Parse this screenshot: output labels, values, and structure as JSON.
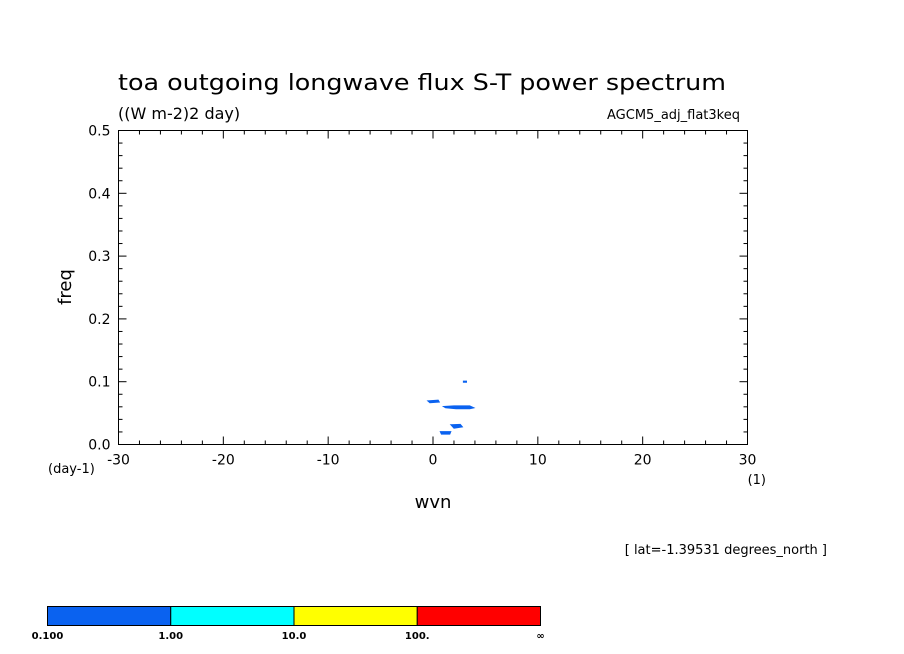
{
  "chart_data": {
    "type": "heatmap",
    "title": "toa outgoing longwave flux S-T power spectrum",
    "units": "((W m-2)2 day)",
    "dataset": "AGCM5_adj_flat3keq",
    "xlabel": "wvn",
    "ylabel": "freq",
    "x_unit": "(1)",
    "y_unit": "(day-1)",
    "xlim": [
      -30,
      30
    ],
    "ylim": [
      0,
      0.5
    ],
    "xticks": [
      -30,
      -20,
      -10,
      0,
      10,
      20,
      30
    ],
    "yticks": [
      0.0,
      0.1,
      0.2,
      0.3,
      0.4,
      0.5
    ],
    "xtick_labels": [
      "-30",
      "-20",
      "-10",
      "0",
      "10",
      "20",
      "30"
    ],
    "ytick_labels": [
      "0.0",
      "0.1",
      "0.2",
      "0.3",
      "0.4",
      "0.5"
    ],
    "annotation": "[ lat=-1.39531 degrees_north ]",
    "regions": [
      {
        "level": "0.1-1",
        "color": "#0a62f0",
        "points": [
          [
            -0.5,
            0.0695
          ],
          [
            0.5,
            0.0705
          ],
          [
            0.6,
            0.0675
          ],
          [
            -0.3,
            0.0665
          ]
        ]
      },
      {
        "level": "0.1-1",
        "color": "#0a62f0",
        "points": [
          [
            1.0,
            0.0605
          ],
          [
            2.0,
            0.0615
          ],
          [
            3.5,
            0.0615
          ],
          [
            3.9,
            0.0585
          ],
          [
            3.5,
            0.057
          ],
          [
            2.2,
            0.057
          ],
          [
            1.2,
            0.0585
          ]
        ]
      },
      {
        "level": "0.1-1",
        "color": "#0a62f0",
        "points": [
          [
            1.7,
            0.0315
          ],
          [
            2.6,
            0.032
          ],
          [
            2.8,
            0.028
          ],
          [
            2.0,
            0.026
          ]
        ]
      },
      {
        "level": "0.1-1",
        "color": "#0a62f0",
        "points": [
          [
            0.7,
            0.0205
          ],
          [
            1.7,
            0.0205
          ],
          [
            1.6,
            0.0165
          ],
          [
            0.8,
            0.0165
          ]
        ]
      },
      {
        "level": "0.1-1",
        "color": "#0a62f0",
        "points": [
          [
            2.9,
            0.101
          ],
          [
            3.2,
            0.101
          ],
          [
            3.2,
            0.099
          ],
          [
            2.9,
            0.099
          ]
        ]
      }
    ],
    "colorbar": {
      "colors": [
        "#0a62f0",
        "#00ffff",
        "#ffff00",
        "#ff0000"
      ],
      "labels": [
        "0.100",
        "1.00",
        "10.0",
        "100.",
        "∞"
      ]
    }
  }
}
